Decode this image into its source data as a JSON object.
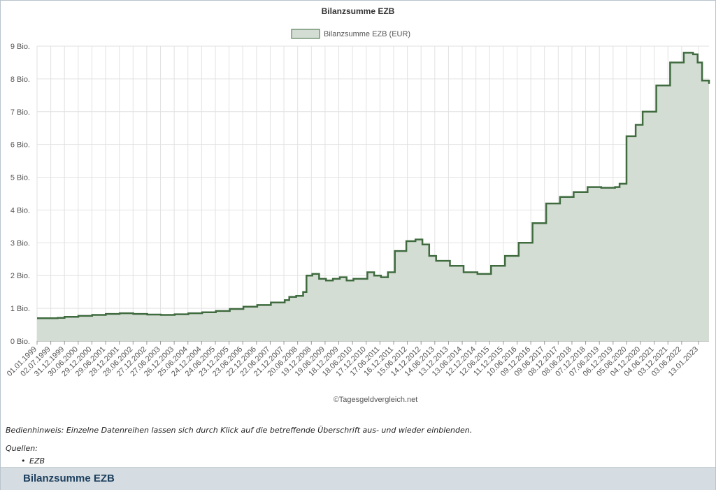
{
  "chart_data": {
    "type": "area",
    "title": "Bilanzsumme EZB",
    "legend": {
      "placement": "top-center",
      "entries": [
        "Bilanzsumme EZB (EUR)"
      ]
    },
    "y_ticks": [
      "0 Bio.",
      "1 Bio.",
      "2 Bio.",
      "3 Bio.",
      "4 Bio.",
      "5 Bio.",
      "6 Bio.",
      "7 Bio.",
      "8 Bio.",
      "9 Bio."
    ],
    "ylim": [
      0,
      9
    ],
    "y_unit": "Bio. EUR",
    "xlim": [
      "1999-01-01",
      "2023-06-01"
    ],
    "grid": true,
    "x_ticks": [
      "01.01.1999",
      "02.07.1999",
      "31.12.1999",
      "30.06.2000",
      "29.12.2000",
      "29.06.2001",
      "28.12.2001",
      "28.06.2002",
      "27.12.2002",
      "27.06.2003",
      "26.12.2003",
      "25.06.2004",
      "24.12.2004",
      "24.06.2005",
      "23.12.2005",
      "23.06.2006",
      "22.12.2006",
      "22.06.2007",
      "21.12.2007",
      "20.06.2008",
      "19.12.2008",
      "19.06.2009",
      "18.12.2009",
      "18.06.2010",
      "17.12.2010",
      "17.06.2011",
      "16.12.2011",
      "15.06.2012",
      "14.12.2012",
      "14.06.2013",
      "13.12.2013",
      "13.06.2014",
      "12.12.2014",
      "12.06.2015",
      "11.12.2015",
      "10.06.2016",
      "09.12.2016",
      "09.06.2017",
      "08.12.2017",
      "08.06.2018",
      "07.12.2018",
      "07.06.2019",
      "06.12.2019",
      "05.06.2020",
      "04.12.2020",
      "04.06.2021",
      "03.12.2021",
      "03.06.2022",
      "13.01.2023"
    ],
    "series": [
      {
        "name": "Bilanzsumme EZB (EUR)",
        "color": "#3f6b3f",
        "fill": "#d4ddd4",
        "points": [
          [
            "1999-01-01",
            0.7
          ],
          [
            "1999-10-01",
            0.71
          ],
          [
            "2000-01-01",
            0.74
          ],
          [
            "2000-07-01",
            0.77
          ],
          [
            "2001-01-01",
            0.8
          ],
          [
            "2001-07-01",
            0.83
          ],
          [
            "2002-01-01",
            0.85
          ],
          [
            "2002-07-01",
            0.83
          ],
          [
            "2003-01-01",
            0.81
          ],
          [
            "2003-07-01",
            0.8
          ],
          [
            "2004-01-01",
            0.82
          ],
          [
            "2004-07-01",
            0.85
          ],
          [
            "2005-01-01",
            0.88
          ],
          [
            "2005-07-01",
            0.92
          ],
          [
            "2006-01-01",
            0.98
          ],
          [
            "2006-07-01",
            1.05
          ],
          [
            "2007-01-01",
            1.1
          ],
          [
            "2007-07-01",
            1.18
          ],
          [
            "2008-01-01",
            1.25
          ],
          [
            "2008-03-01",
            1.35
          ],
          [
            "2008-06-01",
            1.38
          ],
          [
            "2008-09-01",
            1.5
          ],
          [
            "2008-10-15",
            2.0
          ],
          [
            "2009-01-01",
            2.05
          ],
          [
            "2009-04-01",
            1.9
          ],
          [
            "2009-07-01",
            1.85
          ],
          [
            "2009-10-01",
            1.9
          ],
          [
            "2010-01-01",
            1.95
          ],
          [
            "2010-04-01",
            1.85
          ],
          [
            "2010-07-01",
            1.9
          ],
          [
            "2011-01-01",
            2.1
          ],
          [
            "2011-04-01",
            2.0
          ],
          [
            "2011-07-01",
            1.95
          ],
          [
            "2011-10-01",
            2.1
          ],
          [
            "2012-01-01",
            2.75
          ],
          [
            "2012-06-01",
            3.05
          ],
          [
            "2012-10-01",
            3.1
          ],
          [
            "2013-01-01",
            2.95
          ],
          [
            "2013-04-01",
            2.6
          ],
          [
            "2013-07-01",
            2.45
          ],
          [
            "2014-01-01",
            2.3
          ],
          [
            "2014-07-01",
            2.1
          ],
          [
            "2015-01-01",
            2.05
          ],
          [
            "2015-07-01",
            2.3
          ],
          [
            "2016-01-01",
            2.6
          ],
          [
            "2016-07-01",
            3.0
          ],
          [
            "2017-01-01",
            3.6
          ],
          [
            "2017-07-01",
            4.2
          ],
          [
            "2018-01-01",
            4.4
          ],
          [
            "2018-07-01",
            4.55
          ],
          [
            "2019-01-01",
            4.7
          ],
          [
            "2019-07-01",
            4.68
          ],
          [
            "2020-01-01",
            4.7
          ],
          [
            "2020-03-01",
            4.8
          ],
          [
            "2020-06-01",
            6.25
          ],
          [
            "2020-10-01",
            6.6
          ],
          [
            "2021-01-01",
            7.0
          ],
          [
            "2021-07-01",
            7.8
          ],
          [
            "2022-01-01",
            8.5
          ],
          [
            "2022-07-01",
            8.8
          ],
          [
            "2022-11-01",
            8.75
          ],
          [
            "2023-01-01",
            8.5
          ],
          [
            "2023-03-01",
            7.95
          ],
          [
            "2023-06-01",
            7.85
          ]
        ]
      }
    ]
  },
  "credit": "©Tagesgeldvergleich.net",
  "hint": "Bedienhinweis: Einzelne Datenreihen lassen sich durch Klick auf die betreffende Überschrift aus- und wieder einblenden.",
  "sources": {
    "label": "Quellen:",
    "items": [
      "EZB"
    ]
  },
  "section_title": "Bilanzsumme EZB"
}
